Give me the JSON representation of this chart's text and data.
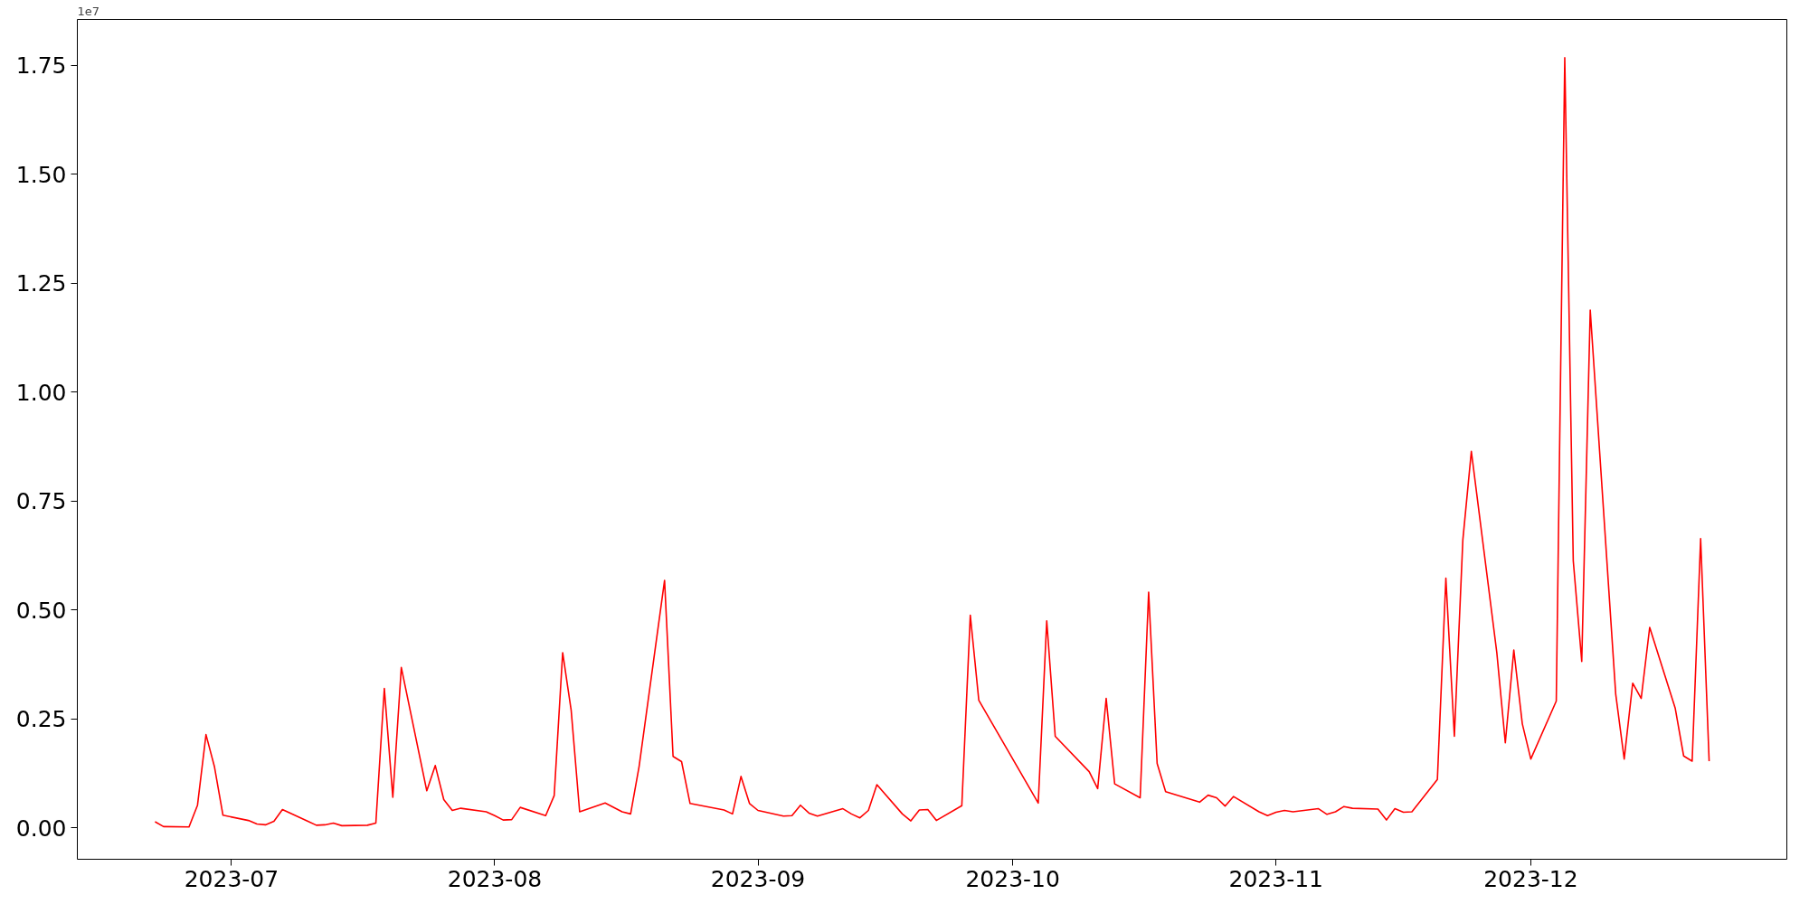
{
  "chart_data": {
    "type": "line",
    "x": [
      "2023-06-22",
      "2023-06-23",
      "2023-06-26",
      "2023-06-27",
      "2023-06-28",
      "2023-06-29",
      "2023-06-30",
      "2023-07-03",
      "2023-07-04",
      "2023-07-05",
      "2023-07-06",
      "2023-07-07",
      "2023-07-10",
      "2023-07-11",
      "2023-07-12",
      "2023-07-13",
      "2023-07-14",
      "2023-07-17",
      "2023-07-18",
      "2023-07-19",
      "2023-07-20",
      "2023-07-21",
      "2023-07-24",
      "2023-07-25",
      "2023-07-26",
      "2023-07-27",
      "2023-07-28",
      "2023-07-31",
      "2023-08-01",
      "2023-08-02",
      "2023-08-03",
      "2023-08-04",
      "2023-08-07",
      "2023-08-08",
      "2023-08-09",
      "2023-08-10",
      "2023-08-11",
      "2023-08-14",
      "2023-08-16",
      "2023-08-17",
      "2023-08-18",
      "2023-08-21",
      "2023-08-22",
      "2023-08-23",
      "2023-08-24",
      "2023-08-28",
      "2023-08-29",
      "2023-08-30",
      "2023-08-31",
      "2023-09-01",
      "2023-09-04",
      "2023-09-05",
      "2023-09-06",
      "2023-09-07",
      "2023-09-08",
      "2023-09-11",
      "2023-09-12",
      "2023-09-13",
      "2023-09-14",
      "2023-09-15",
      "2023-09-18",
      "2023-09-19",
      "2023-09-20",
      "2023-09-21",
      "2023-09-22",
      "2023-09-25",
      "2023-09-26",
      "2023-09-27",
      "2023-10-04",
      "2023-10-05",
      "2023-10-06",
      "2023-10-10",
      "2023-10-11",
      "2023-10-12",
      "2023-10-13",
      "2023-10-16",
      "2023-10-17",
      "2023-10-18",
      "2023-10-19",
      "2023-10-23",
      "2023-10-24",
      "2023-10-25",
      "2023-10-26",
      "2023-10-27",
      "2023-10-30",
      "2023-10-31",
      "2023-11-01",
      "2023-11-02",
      "2023-11-03",
      "2023-11-06",
      "2023-11-07",
      "2023-11-08",
      "2023-11-09",
      "2023-11-10",
      "2023-11-13",
      "2023-11-14",
      "2023-11-15",
      "2023-11-16",
      "2023-11-17",
      "2023-11-20",
      "2023-11-21",
      "2023-11-22",
      "2023-11-23",
      "2023-11-24",
      "2023-11-27",
      "2023-11-28",
      "2023-11-29",
      "2023-11-30",
      "2023-12-01",
      "2023-12-04",
      "2023-12-05",
      "2023-12-06",
      "2023-12-07",
      "2023-12-08",
      "2023-12-11",
      "2023-12-12",
      "2023-12-13",
      "2023-12-14",
      "2023-12-15",
      "2023-12-18",
      "2023-12-19",
      "2023-12-20",
      "2023-12-21",
      "2023-12-22"
    ],
    "series": [
      {
        "color": "#ff0000",
        "values": [
          0.014,
          0.003,
          0.002,
          0.052,
          0.214,
          0.14,
          0.029,
          0.017,
          0.009,
          0.007,
          0.015,
          0.042,
          0.015,
          0.006,
          0.007,
          0.011,
          0.005,
          0.006,
          0.011,
          0.32,
          0.07,
          0.368,
          0.085,
          0.143,
          0.065,
          0.04,
          0.045,
          0.037,
          0.028,
          0.018,
          0.019,
          0.047,
          0.028,
          0.074,
          0.402,
          0.27,
          0.037,
          0.057,
          0.037,
          0.032,
          0.141,
          0.568,
          0.164,
          0.152,
          0.056,
          0.041,
          0.032,
          0.118,
          0.056,
          0.04,
          0.027,
          0.028,
          0.052,
          0.034,
          0.027,
          0.044,
          0.032,
          0.023,
          0.04,
          0.099,
          0.032,
          0.016,
          0.041,
          0.042,
          0.017,
          0.051,
          0.488,
          0.293,
          0.057,
          0.475,
          0.21,
          0.129,
          0.09,
          0.297,
          0.101,
          0.069,
          0.541,
          0.148,
          0.083,
          0.059,
          0.075,
          0.069,
          0.05,
          0.072,
          0.037,
          0.028,
          0.036,
          0.04,
          0.037,
          0.044,
          0.031,
          0.037,
          0.049,
          0.045,
          0.043,
          0.018,
          0.044,
          0.036,
          0.037,
          0.111,
          0.573,
          0.21,
          0.661,
          0.864,
          0.402,
          0.195,
          0.408,
          0.239,
          0.158,
          0.291,
          1.767,
          0.613,
          0.382,
          1.188,
          0.307,
          0.158,
          0.332,
          0.297,
          0.46,
          0.275,
          0.165,
          0.153,
          0.664,
          0.153
        ]
      }
    ],
    "xlim": [
      "2023-06-12T20:24",
      "2023-12-31T03:36"
    ],
    "xticks": [
      "2023-07",
      "2023-08",
      "2023-09",
      "2023-10",
      "2023-11",
      "2023-12"
    ],
    "ylim": [
      -0.072,
      1.855
    ],
    "yticks": [
      {
        "value": 0,
        "label": "0.00"
      },
      0.25,
      {
        "value": 0.5,
        "label": "0.50"
      },
      0.75,
      {
        "value": 1,
        "label": "1.00"
      },
      1.25,
      {
        "value": 1.5,
        "label": "1.50"
      },
      1.75
    ],
    "annotations": [
      "1e7"
    ],
    "grid": false,
    "marker": "none",
    "line_style": "solid"
  }
}
